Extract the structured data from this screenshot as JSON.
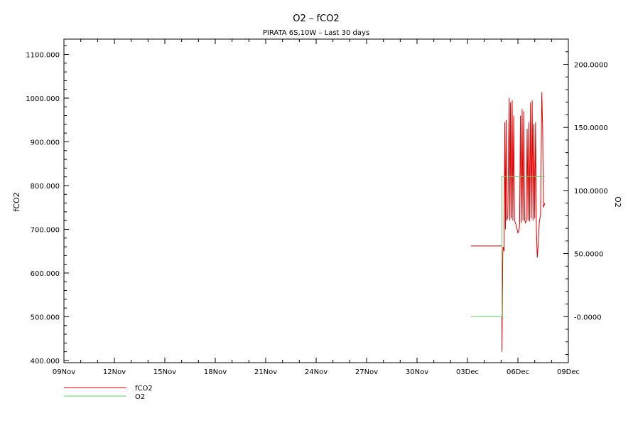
{
  "chart_data": {
    "type": "line",
    "title": "O2 – fCO2",
    "subtitle": "PIRATA 6S,10W – Last 30 days",
    "xlabel": "",
    "ylabel": "fCO2",
    "y2label": "O2",
    "x_ticks": [
      "09Nov",
      "12Nov",
      "15Nov",
      "18Nov",
      "21Nov",
      "24Nov",
      "27Nov",
      "30Nov",
      "03Dec",
      "06Dec",
      "09Dec"
    ],
    "xlim_days": [
      0,
      30
    ],
    "ylim": [
      395,
      1135
    ],
    "y_ticks": [
      "400.000",
      "500.000",
      "600.000",
      "700.000",
      "800.000",
      "900.000",
      "1000.000",
      "1100.000"
    ],
    "y2lim": [
      -36.5,
      220
    ],
    "y2_ticks": [
      "-0.0000",
      "50.0000",
      "100.0000",
      "150.0000",
      "200.0000"
    ],
    "grid": false,
    "legend_position": "bottom-left",
    "series": [
      {
        "name": "fCO2",
        "color": "#e00000",
        "axis": "left",
        "points": [
          [
            24.2,
            662
          ],
          [
            26.05,
            662
          ],
          [
            26.05,
            420
          ],
          [
            26.1,
            640
          ],
          [
            26.12,
            660
          ],
          [
            26.18,
            650
          ],
          [
            26.22,
            945
          ],
          [
            26.26,
            700
          ],
          [
            26.3,
            950
          ],
          [
            26.34,
            720
          ],
          [
            26.4,
            730
          ],
          [
            26.48,
            1000
          ],
          [
            26.52,
            720
          ],
          [
            26.56,
            990
          ],
          [
            26.6,
            725
          ],
          [
            26.66,
            995
          ],
          [
            26.7,
            720
          ],
          [
            26.75,
            960
          ],
          [
            26.8,
            720
          ],
          [
            26.88,
            712
          ],
          [
            26.95,
            700
          ],
          [
            27.0,
            692
          ],
          [
            27.05,
            696
          ],
          [
            27.1,
            710
          ],
          [
            27.15,
            960
          ],
          [
            27.2,
            715
          ],
          [
            27.25,
            975
          ],
          [
            27.3,
            720
          ],
          [
            27.35,
            970
          ],
          [
            27.4,
            722
          ],
          [
            27.45,
            715
          ],
          [
            27.5,
            720
          ],
          [
            27.55,
            930
          ],
          [
            27.6,
            720
          ],
          [
            27.65,
            945
          ],
          [
            27.7,
            718
          ],
          [
            27.75,
            990
          ],
          [
            27.8,
            725
          ],
          [
            27.85,
            995
          ],
          [
            27.9,
            720
          ],
          [
            27.95,
            940
          ],
          [
            28.0,
            725
          ],
          [
            28.05,
            945
          ],
          [
            28.1,
            700
          ],
          [
            28.15,
            635
          ],
          [
            28.2,
            660
          ],
          [
            28.27,
            715
          ],
          [
            28.35,
            735
          ],
          [
            28.42,
            1013
          ],
          [
            28.47,
            935
          ],
          [
            28.52,
            750
          ],
          [
            28.6,
            760
          ]
        ]
      },
      {
        "name": "O2",
        "color": "#66cc66",
        "axis": "right",
        "points": [
          [
            24.2,
            0
          ],
          [
            26.05,
            0
          ],
          [
            26.05,
            111
          ],
          [
            28.6,
            111
          ]
        ]
      }
    ]
  }
}
